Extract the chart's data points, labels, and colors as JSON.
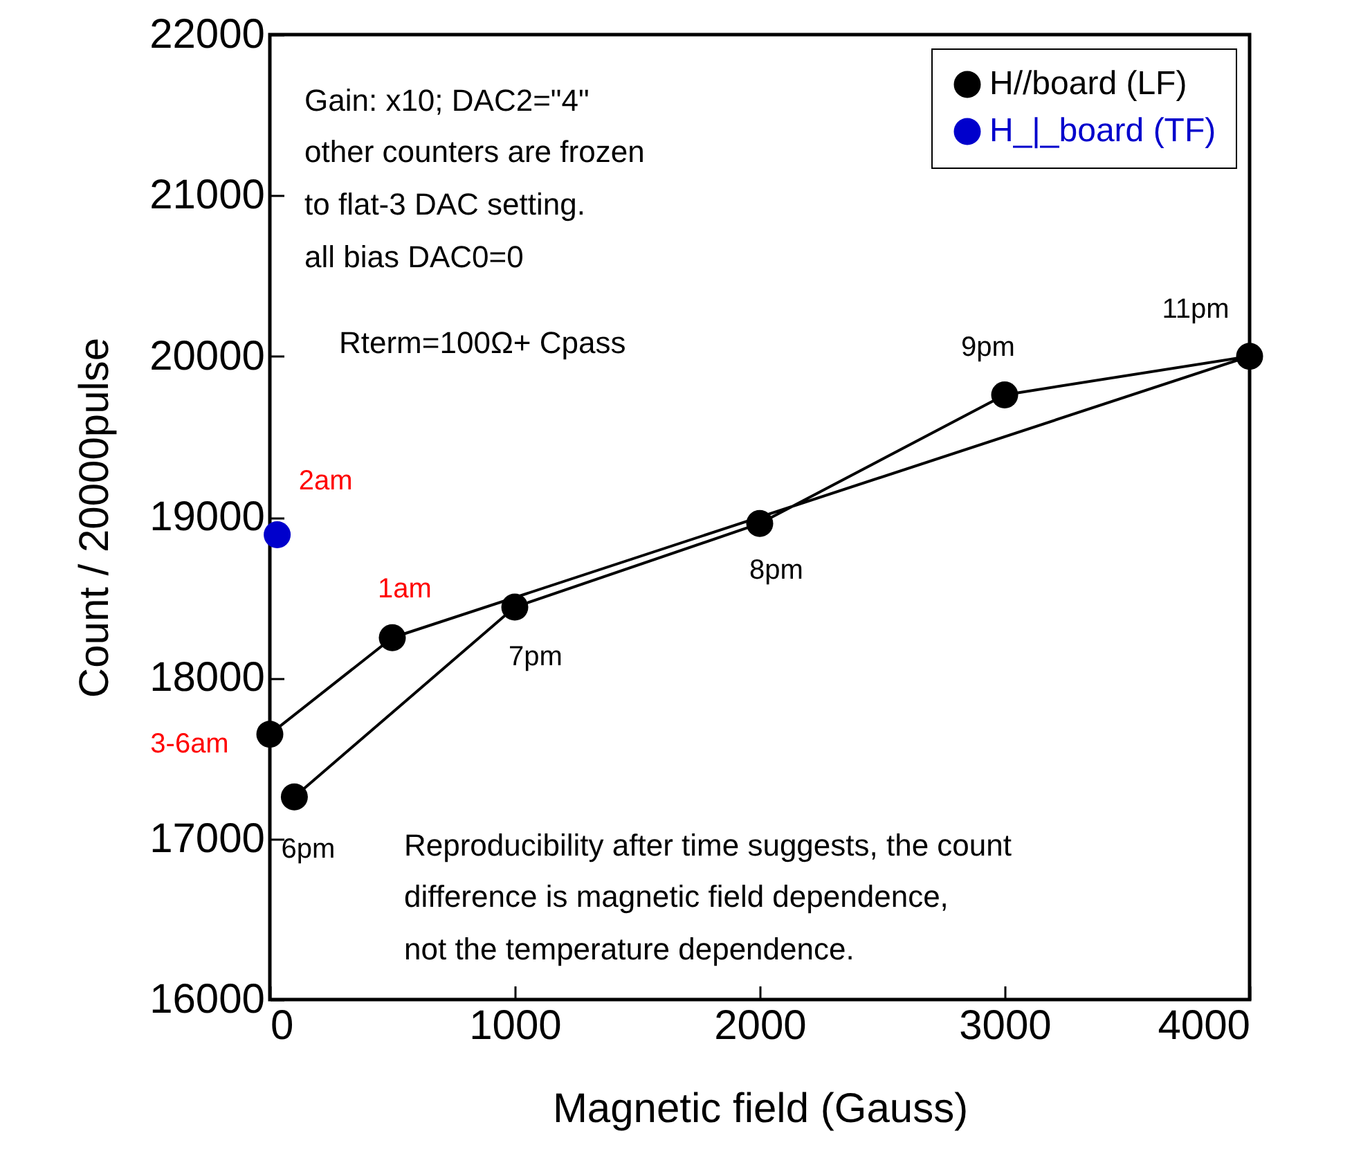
{
  "chart_data": {
    "type": "line",
    "xlabel": "Magnetic field (Gauss)",
    "ylabel": "Count / 20000pulse",
    "xlim": [
      0,
      4000
    ],
    "xticks": [
      0,
      1000,
      2000,
      3000,
      4000
    ],
    "ylim": [
      16000,
      22000
    ],
    "yticks": [
      16000,
      17000,
      18000,
      19000,
      20000,
      21000,
      22000
    ],
    "grid": false,
    "legend": "top right",
    "marker": "circle",
    "line_style": "solid",
    "series": [
      {
        "name": "H//board (LF)",
        "color": "#000000",
        "x": [
          100,
          1000,
          2000,
          3000,
          4000,
          500,
          0
        ],
        "values": [
          17260,
          18440,
          18960,
          19760,
          20000,
          18250,
          17650
        ]
      },
      {
        "name": "H_|_board (TF)",
        "type": "scatter",
        "color": "#0000cc",
        "x": [
          30
        ],
        "values": [
          18890
        ]
      }
    ],
    "annotations": [
      "Gain: x10; DAC2=\"4\"",
      "other counters are frozen",
      "to flat-3 DAC setting.",
      "all bias DAC0=0",
      "Rterm=100Ω+ Cpass",
      "Reproducibility after time suggests, the count",
      "difference is magnetic field dependence,",
      "not the temperature dependence.",
      {
        "text": "6pm",
        "x": 100,
        "y": 17260
      },
      {
        "text": "7pm",
        "x": 1000,
        "y": 18440
      },
      {
        "text": "8pm",
        "x": 2000,
        "y": 18960
      },
      {
        "text": "9pm",
        "x": 3000,
        "y": 19760
      },
      {
        "text": "11pm",
        "x": 4000,
        "y": 20000
      },
      {
        "text": "1am",
        "x": 500,
        "y": 18250
      },
      {
        "text": "3-6am",
        "x": 0,
        "y": 17650
      },
      {
        "text": "2am",
        "x": 30,
        "y": 18890
      }
    ]
  }
}
